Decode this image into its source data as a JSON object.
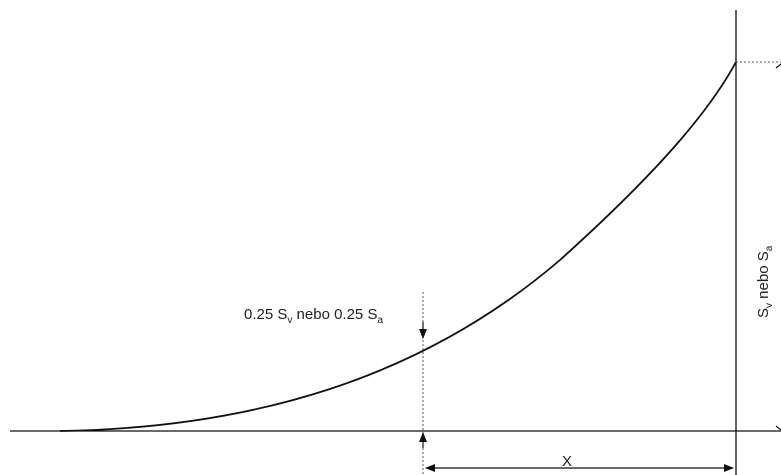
{
  "diagram": {
    "label_quarter": {
      "main": "0.25 S",
      "sub1": "v",
      "mid": " nebo 0.25 S",
      "sub2": "a"
    },
    "label_full": {
      "main": "S",
      "sub1": "v",
      "mid": " nebo S",
      "sub2": "a"
    },
    "label_x": "X",
    "colors": {
      "line": "#111111",
      "dotted": "#555555",
      "text": "#222222"
    }
  }
}
